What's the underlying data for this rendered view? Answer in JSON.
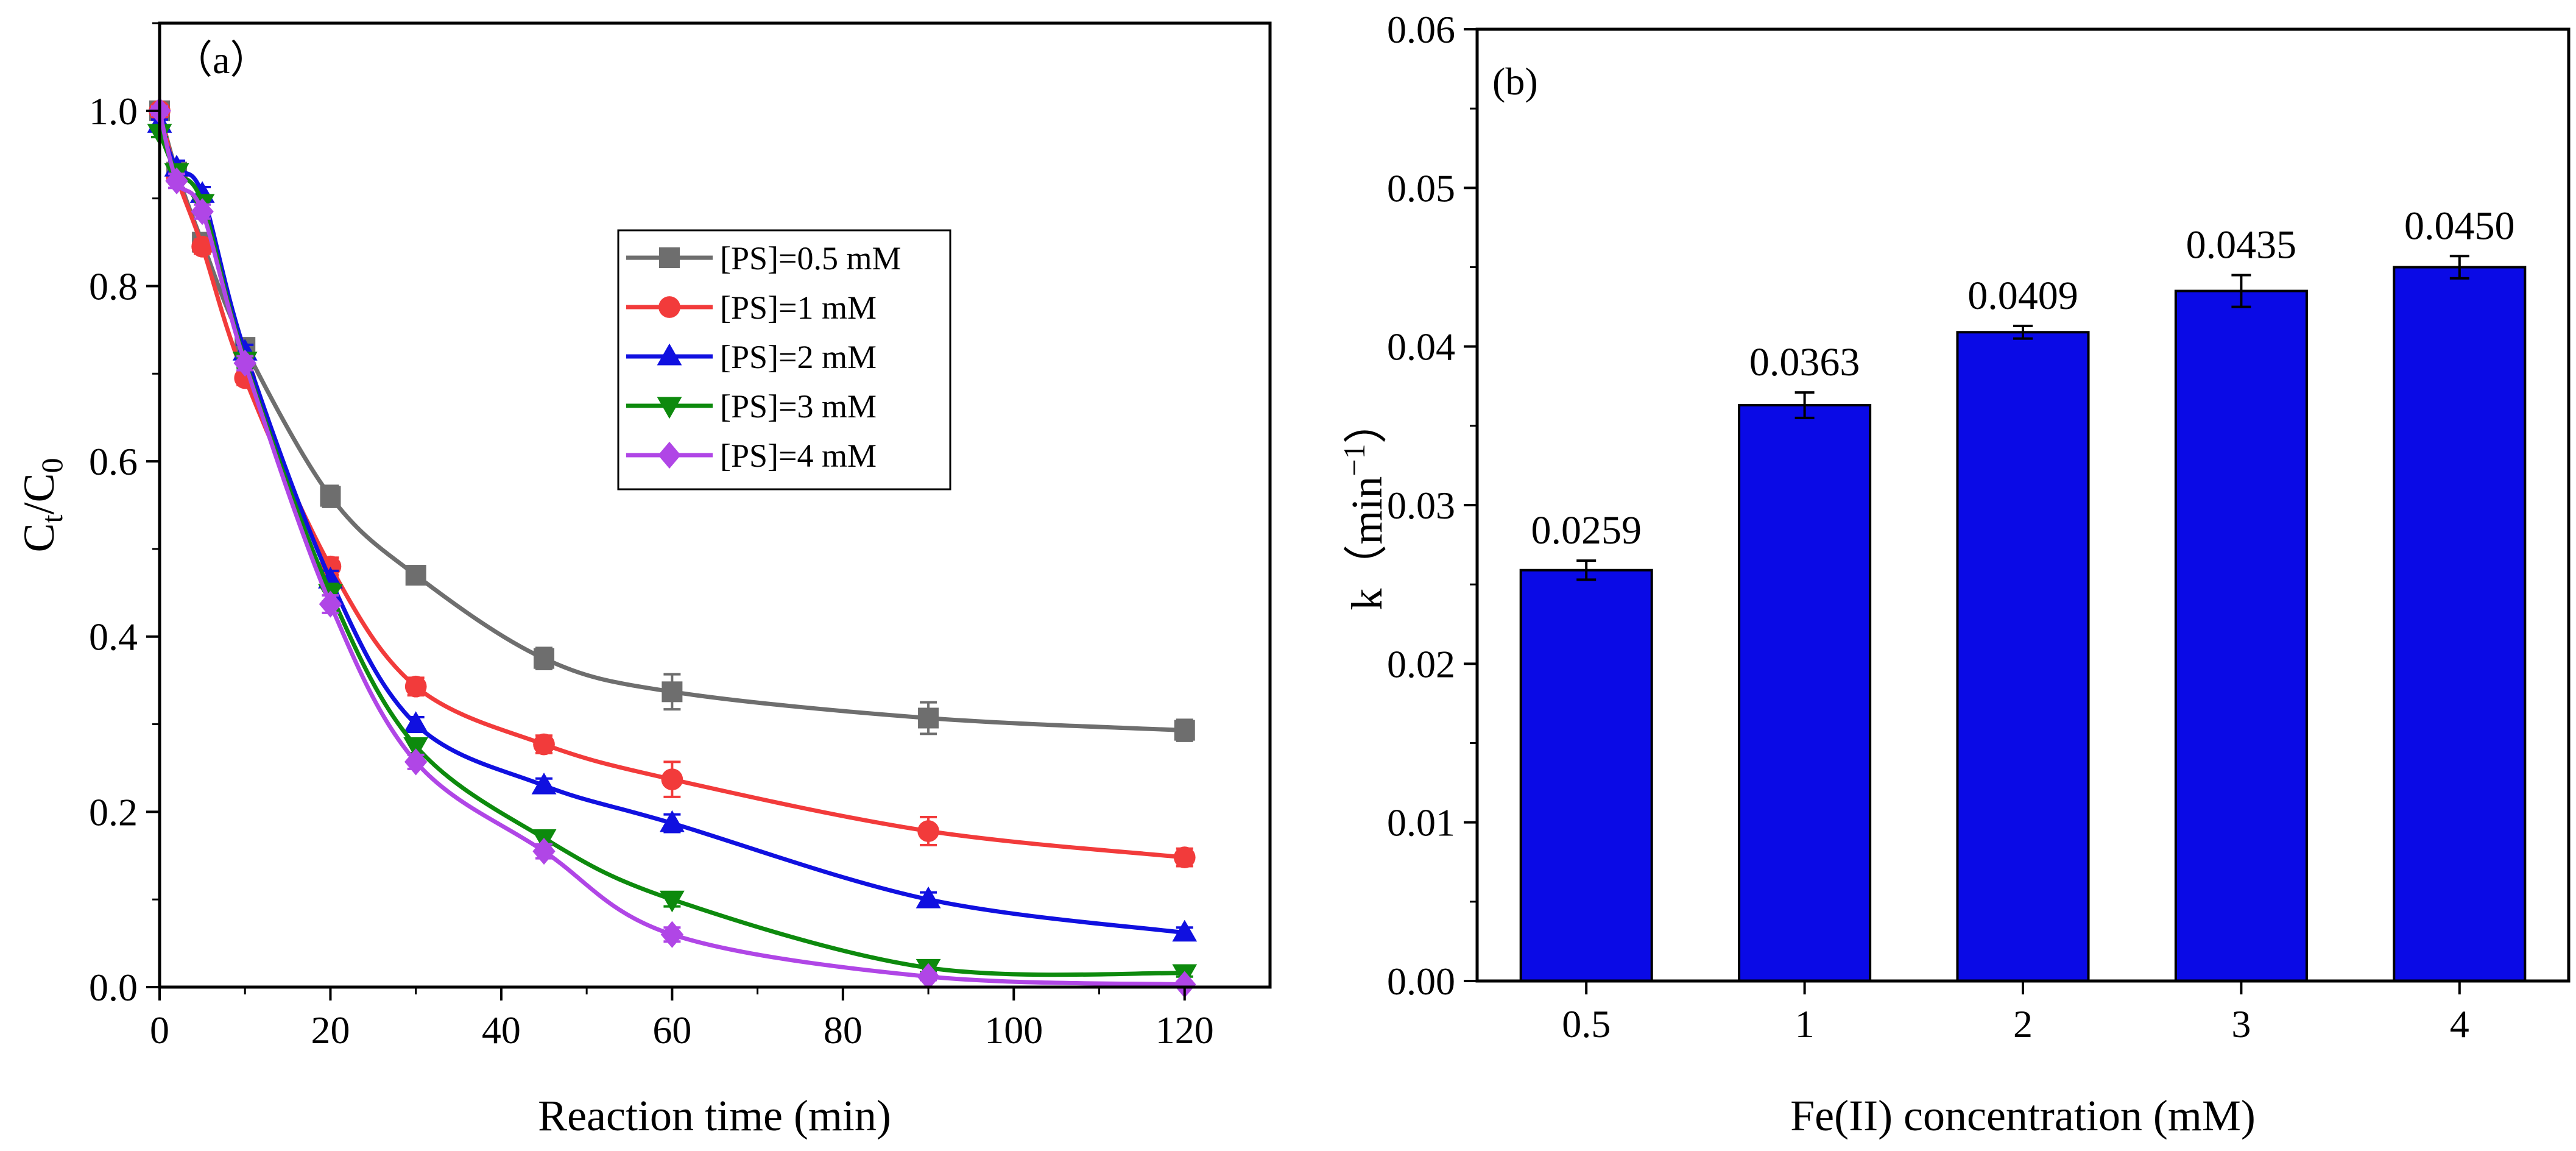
{
  "chart_data": [
    {
      "type": "line",
      "panel_label": "（a）",
      "xlabel": "Reaction time (min)",
      "ylabel_base": "C",
      "ylabel_sub1": "t",
      "ylabel_mid": "/C",
      "ylabel_sub2": "0",
      "xlim": [
        0,
        130
      ],
      "ylim": [
        0,
        1.1
      ],
      "xticks": [
        0,
        20,
        40,
        60,
        80,
        100,
        120
      ],
      "yticks": [
        0.0,
        0.2,
        0.4,
        0.6,
        0.8,
        1.0
      ],
      "ytick_labels": [
        "0.0",
        "0.2",
        "0.4",
        "0.6",
        "0.8",
        "1.0"
      ],
      "legend_position": "center-right",
      "x": [
        0,
        2,
        5,
        10,
        20,
        30,
        45,
        60,
        90,
        120
      ],
      "series": [
        {
          "name": "[PS]=0.5 mM",
          "color": "#6e6e6e",
          "marker": "square",
          "values": [
            1.0,
            0.93,
            0.85,
            0.73,
            0.56,
            0.47,
            0.375,
            0.337,
            0.307,
            0.293
          ],
          "errors": [
            0.005,
            0.008,
            0.008,
            0.01,
            0.012,
            0.008,
            0.012,
            0.02,
            0.018,
            0.012
          ]
        },
        {
          "name": "[PS]=1 mM",
          "color": "#f23b3b",
          "marker": "circle",
          "values": [
            1.0,
            0.925,
            0.845,
            0.695,
            0.48,
            0.343,
            0.277,
            0.237,
            0.178,
            0.148
          ],
          "errors": [
            0.005,
            0.008,
            0.008,
            0.008,
            0.01,
            0.01,
            0.01,
            0.02,
            0.016,
            0.01
          ]
        },
        {
          "name": "[PS]=2 mM",
          "color": "#1010e0",
          "marker": "triangle-up",
          "values": [
            0.985,
            0.935,
            0.905,
            0.725,
            0.465,
            0.3,
            0.23,
            0.187,
            0.1,
            0.062
          ],
          "errors": [
            0.005,
            0.008,
            0.008,
            0.008,
            0.01,
            0.008,
            0.008,
            0.01,
            0.008,
            0.006
          ]
        },
        {
          "name": "[PS]=3 mM",
          "color": "#0d8a0d",
          "marker": "triangle-down",
          "values": [
            0.975,
            0.93,
            0.895,
            0.715,
            0.45,
            0.275,
            0.17,
            0.1,
            0.022,
            0.016
          ],
          "errors": [
            0.005,
            0.008,
            0.008,
            0.008,
            0.01,
            0.008,
            0.008,
            0.008,
            0.005,
            0.004
          ]
        },
        {
          "name": "[PS]=4 mM",
          "color": "#b046e6",
          "marker": "diamond",
          "values": [
            1.0,
            0.92,
            0.885,
            0.712,
            0.437,
            0.257,
            0.155,
            0.06,
            0.012,
            0.003
          ],
          "errors": [
            0.005,
            0.008,
            0.008,
            0.008,
            0.01,
            0.008,
            0.008,
            0.008,
            0.004,
            0.003
          ]
        }
      ]
    },
    {
      "type": "bar",
      "panel_label": "(b)",
      "xlabel": "Fe(II) concentration (mM)",
      "ylabel_base": "k（min",
      "ylabel_sup": "−1",
      "ylabel_end": "）",
      "ylim": [
        0,
        0.06
      ],
      "yticks": [
        0.0,
        0.01,
        0.02,
        0.03,
        0.04,
        0.05,
        0.06
      ],
      "ytick_labels": [
        "0.00",
        "0.01",
        "0.02",
        "0.03",
        "0.04",
        "0.05",
        "0.06"
      ],
      "categories": [
        "0.5",
        "1",
        "2",
        "3",
        "4"
      ],
      "values": [
        0.0259,
        0.0363,
        0.0409,
        0.0435,
        0.045
      ],
      "value_labels": [
        "0.0259",
        "0.0363",
        "0.0409",
        "0.0435",
        "0.0450"
      ],
      "errors": [
        0.0006,
        0.0008,
        0.0004,
        0.001,
        0.0007
      ],
      "bar_color": "#0a0ae6"
    }
  ]
}
